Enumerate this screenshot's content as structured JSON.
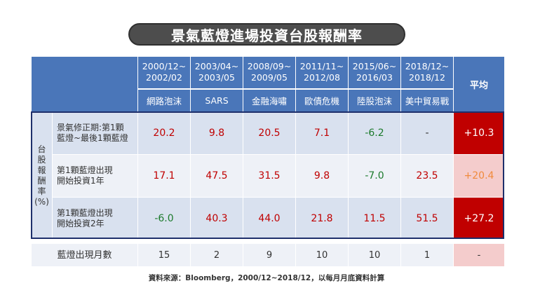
{
  "title": "景氣藍燈進場投資台股報酬率",
  "periods": [
    {
      "date_line1": "2000/12~",
      "date_line2": "2002/02",
      "event": "網路泡沫"
    },
    {
      "date_line1": "2003/04~",
      "date_line2": "2003/05",
      "event": "SARS"
    },
    {
      "date_line1": "2008/09~",
      "date_line2": "2009/05",
      "event": "金融海嘯"
    },
    {
      "date_line1": "2011/11~",
      "date_line2": "2012/08",
      "event": "歐債危機"
    },
    {
      "date_line1": "2015/06~",
      "date_line2": "2016/03",
      "event": "陸股泡沫"
    },
    {
      "date_line1": "2018/12~",
      "date_line2": "2018/12",
      "event": "美中貿易戰"
    }
  ],
  "average_header": "平均",
  "side_label": [
    "台",
    "股",
    "報",
    "酬",
    "率",
    "(%)"
  ],
  "rows": [
    {
      "label_line1": "景氣修正期:第1顆",
      "label_line2": "藍燈~最後1顆藍燈",
      "values": [
        "20.2",
        "9.8",
        "20.5",
        "7.1",
        "-6.2",
        "-"
      ],
      "average": "+10.3"
    },
    {
      "label_line1": "第1顆藍燈出現",
      "label_line2": "開始投資1年",
      "values": [
        "17.1",
        "47.5",
        "31.5",
        "9.8",
        "-7.0",
        "23.5"
      ],
      "average": "+20.4"
    },
    {
      "label_line1": "第1顆藍燈出現",
      "label_line2": "開始投資2年",
      "values": [
        "-6.0",
        "40.3",
        "44.0",
        "21.8",
        "11.5",
        "51.5"
      ],
      "average": "+27.2"
    }
  ],
  "months_row": {
    "label": "藍燈出現月數",
    "values": [
      "15",
      "2",
      "9",
      "10",
      "10",
      "1"
    ],
    "average": "-"
  },
  "source": "資料來源：Bloomberg，2000/12~2018/12，以每月月底資料計算",
  "colors": {
    "header_blue": "#4a76b9",
    "frame_navy": "#1e2f6b",
    "avg_red": "#c00000",
    "avg_pink": "#f4cccc",
    "negative_green": "#1c7a2c",
    "positive_red": "#c00000"
  }
}
